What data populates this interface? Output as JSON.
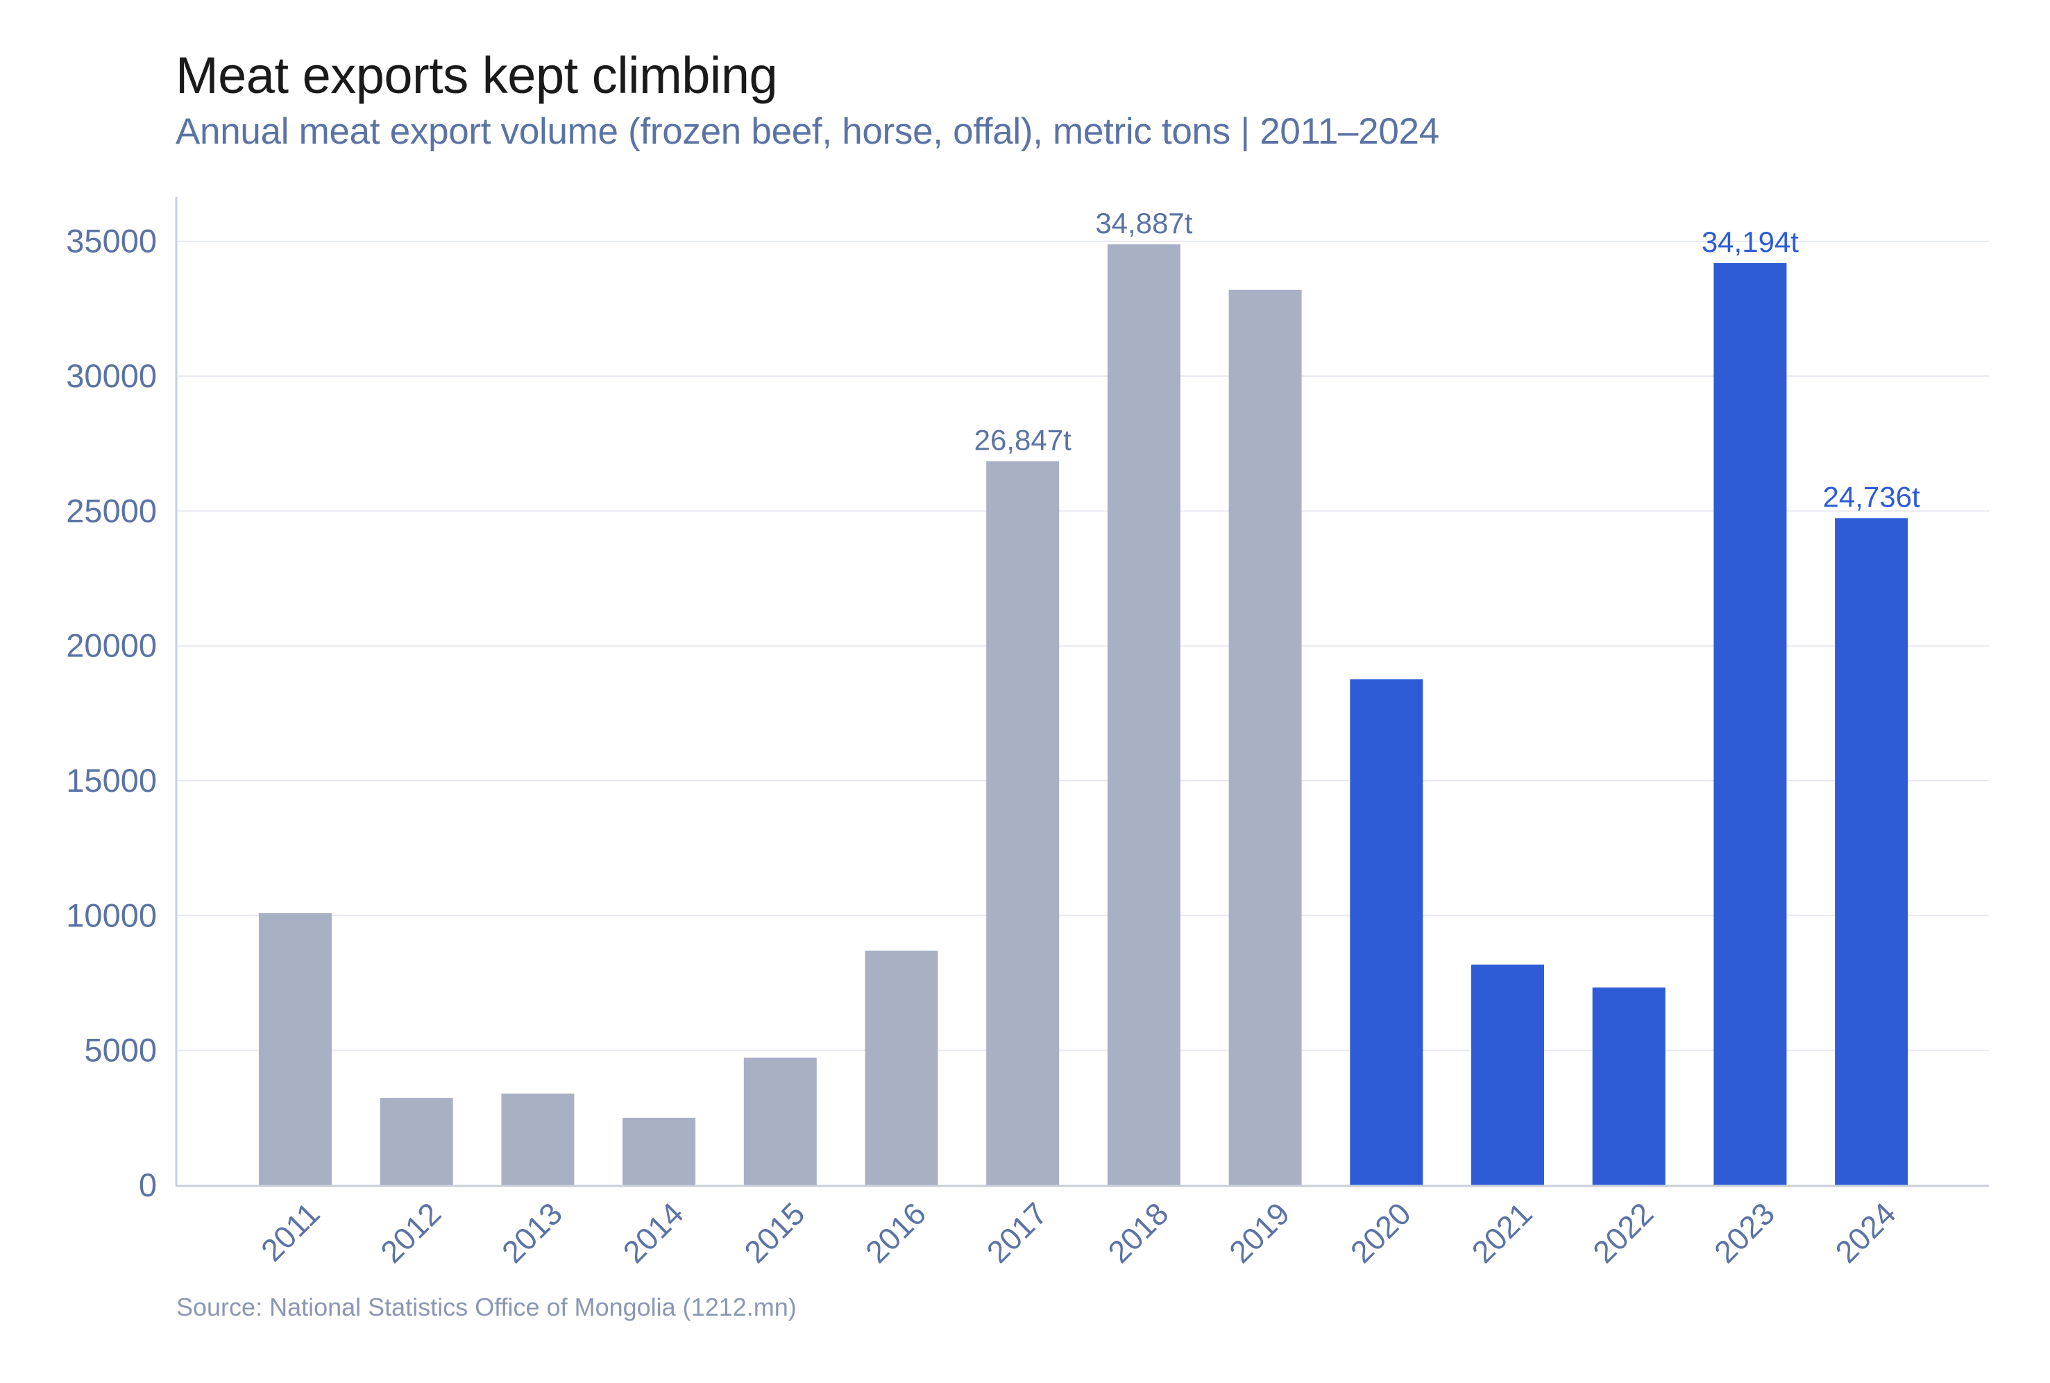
{
  "header": {
    "title": "Meat exports kept climbing",
    "subtitle": "Annual meat export volume (frozen beef, horse, offal), metric tons | 2011–2024"
  },
  "footer": {
    "source": "Source: National Statistics Office of Mongolia (1212.mn)"
  },
  "colors": {
    "muted_bar": "#a8b1c4",
    "highlight_bar": "#2d5cd6",
    "muted_label": "#5b73a4",
    "highlight_label": "#2d5cd6",
    "grid": "#e6e9f0",
    "axis": "#c9cfdb"
  },
  "chart_data": {
    "type": "bar",
    "title": "Meat exports kept climbing",
    "subtitle": "Annual meat export volume (frozen beef, horse, offal), metric tons | 2011–2024",
    "xlabel": "",
    "ylabel": "",
    "categories": [
      "2011",
      "2012",
      "2013",
      "2014",
      "2015",
      "2016",
      "2017",
      "2018",
      "2019",
      "2020",
      "2021",
      "2022",
      "2023",
      "2024"
    ],
    "values": [
      10090,
      3240,
      3400,
      2500,
      4730,
      8700,
      26847,
      34887,
      33200,
      18760,
      8180,
      7330,
      34194,
      24736
    ],
    "highlighted": [
      false,
      false,
      false,
      false,
      false,
      false,
      false,
      false,
      false,
      true,
      true,
      true,
      true,
      true
    ],
    "data_labels": [
      {
        "category": "2017",
        "text": "26,847t"
      },
      {
        "category": "2018",
        "text": "34,887t"
      },
      {
        "category": "2023",
        "text": "34,194t"
      },
      {
        "category": "2024",
        "text": "24,736t"
      }
    ],
    "yticks": [
      0,
      5000,
      10000,
      15000,
      20000,
      25000,
      30000,
      35000
    ],
    "ytick_labels": [
      "0",
      "5000",
      "10000",
      "15000",
      "20000",
      "25000",
      "30000",
      "35000"
    ],
    "ylim": [
      0,
      36640
    ],
    "grid": true,
    "legend": "none",
    "source": "Source: National Statistics Office of Mongolia (1212.mn)"
  }
}
